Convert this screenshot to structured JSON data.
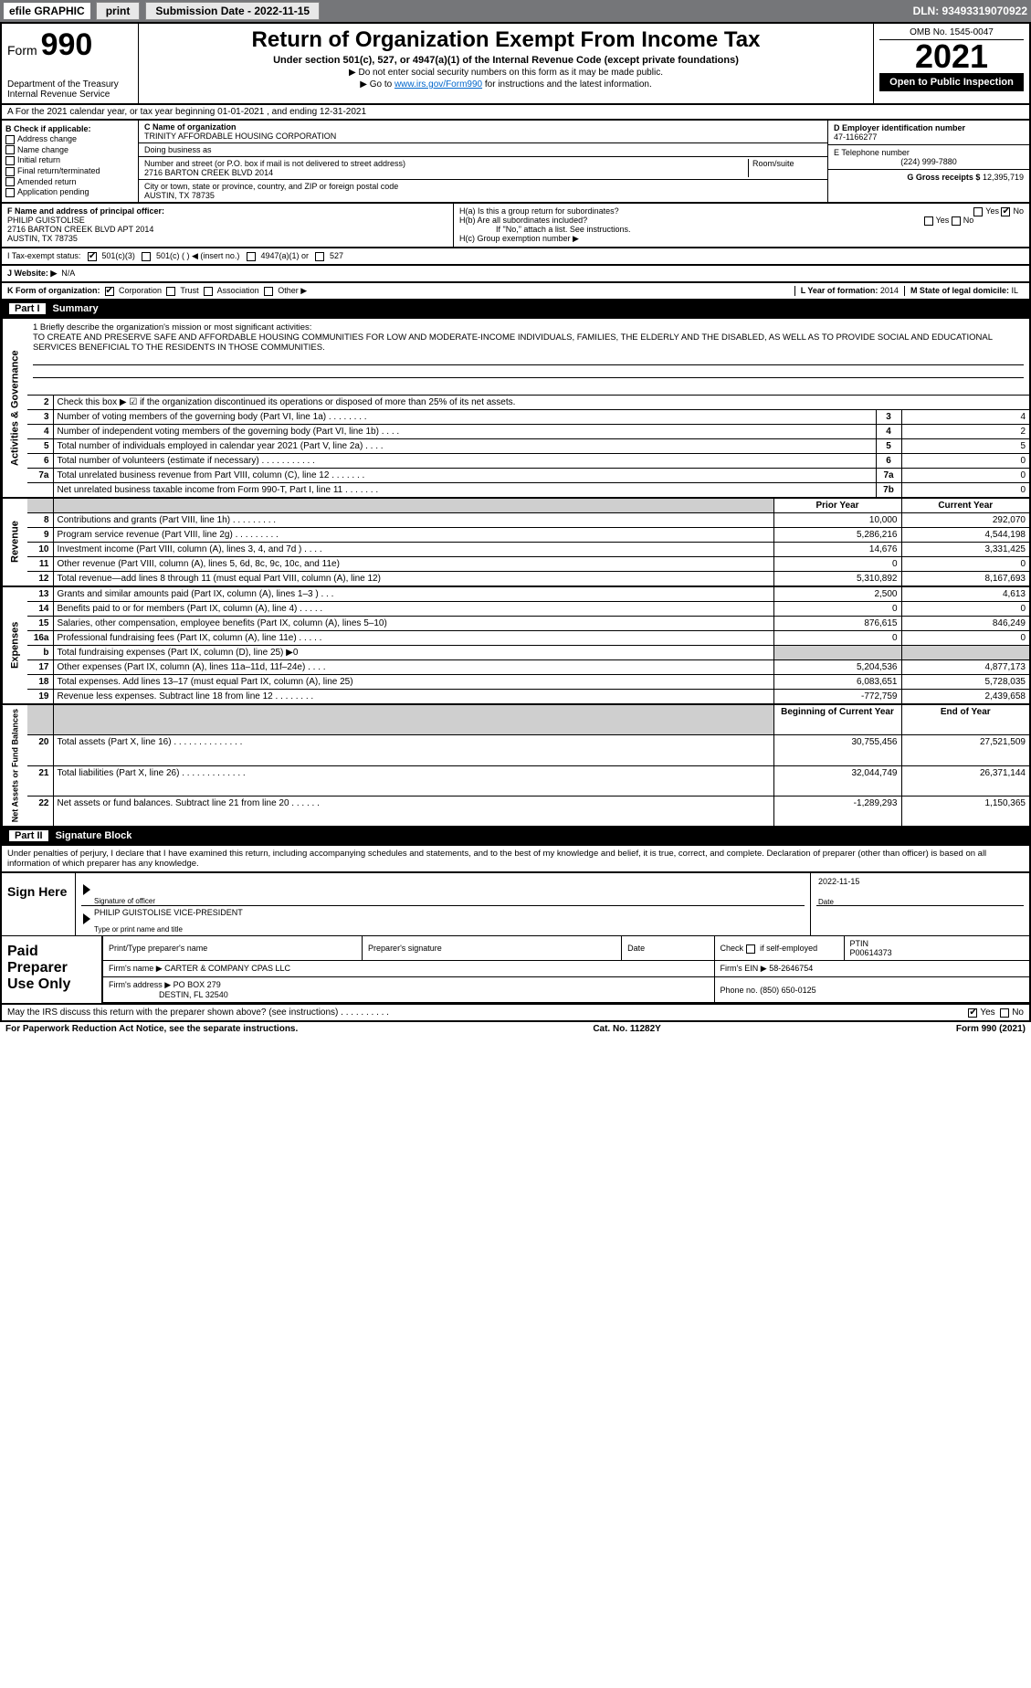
{
  "topbar": {
    "efile": "efile GRAPHIC",
    "print": "print",
    "sub_label": "Submission Date - 2022-11-15",
    "dln": "DLN: 93493319070922"
  },
  "header": {
    "form_label": "Form",
    "form_no": "990",
    "dept": "Department of the Treasury",
    "irs": "Internal Revenue Service",
    "title": "Return of Organization Exempt From Income Tax",
    "sub1": "Under section 501(c), 527, or 4947(a)(1) of the Internal Revenue Code (except private foundations)",
    "sub2": "▶ Do not enter social security numbers on this form as it may be made public.",
    "sub3_pre": "▶ Go to ",
    "sub3_link": "www.irs.gov/Form990",
    "sub3_post": " for instructions and the latest information.",
    "omb": "OMB No. 1545-0047",
    "year": "2021",
    "open": "Open to Public Inspection"
  },
  "rowA": "A For the 2021 calendar year, or tax year beginning 01-01-2021    , and ending 12-31-2021",
  "colB": {
    "label": "B Check if applicable:",
    "items": [
      "Address change",
      "Name change",
      "Initial return",
      "Final return/terminated",
      "Amended return",
      "Application pending"
    ]
  },
  "colC": {
    "name_label": "C Name of organization",
    "name": "TRINITY AFFORDABLE HOUSING CORPORATION",
    "dba_label": "Doing business as",
    "dba": "",
    "addr_label": "Number and street (or P.O. box if mail is not delivered to street address)",
    "room_label": "Room/suite",
    "addr": "2716 BARTON CREEK BLVD 2014",
    "city_label": "City or town, state or province, country, and ZIP or foreign postal code",
    "city": "AUSTIN, TX  78735"
  },
  "colD": {
    "ein_label": "D Employer identification number",
    "ein": "47-1166277",
    "phone_label": "E Telephone number",
    "phone": "(224) 999-7880",
    "gross_label": "G Gross receipts $",
    "gross": "12,395,719"
  },
  "rowF": {
    "label": "F  Name and address of principal officer:",
    "name": "PHILIP GUISTOLISE",
    "addr1": "2716 BARTON CREEK BLVD APT 2014",
    "addr2": "AUSTIN, TX  78735"
  },
  "rowH": {
    "ha": "H(a)  Is this a group return for subordinates?",
    "ha_yes": "Yes",
    "ha_no": "No",
    "hb": "H(b)  Are all subordinates included?",
    "hb_yes": "Yes",
    "hb_no": "No",
    "hb_note": "If \"No,\" attach a list. See instructions.",
    "hc": "H(c)  Group exemption number ▶"
  },
  "rowI": {
    "label": "I    Tax-exempt status:",
    "opt1": "501(c)(3)",
    "opt2": "501(c) (   ) ◀ (insert no.)",
    "opt3": "4947(a)(1) or",
    "opt4": "527"
  },
  "rowJ": {
    "label": "J   Website: ▶",
    "val": "N/A"
  },
  "rowK": {
    "label": "K Form of organization:",
    "opts": [
      "Corporation",
      "Trust",
      "Association",
      "Other ▶"
    ],
    "l_label": "L Year of formation:",
    "l_val": "2014",
    "m_label": "M State of legal domicile:",
    "m_val": "IL"
  },
  "part1": {
    "num": "Part I",
    "title": "Summary"
  },
  "mission": {
    "q": "1 Briefly describe the organization's mission or most significant activities:",
    "text": "TO CREATE AND PRESERVE SAFE AND AFFORDABLE HOUSING COMMUNITIES FOR LOW AND MODERATE-INCOME INDIVIDUALS, FAMILIES, THE ELDERLY AND THE DISABLED, AS WELL AS TO PROVIDE SOCIAL AND EDUCATIONAL SERVICES BENEFICIAL TO THE RESIDENTS IN THOSE COMMUNITIES."
  },
  "gov_rows": [
    {
      "n": "2",
      "t": "Check this box ▶ ☑ if the organization discontinued its operations or disposed of more than 25% of its net assets.",
      "box": "",
      "v": ""
    },
    {
      "n": "3",
      "t": "Number of voting members of the governing body (Part VI, line 1a)  .  .  .  .  .  .  .  .",
      "box": "3",
      "v": "4"
    },
    {
      "n": "4",
      "t": "Number of independent voting members of the governing body (Part VI, line 1b)  .  .  .  .",
      "box": "4",
      "v": "2"
    },
    {
      "n": "5",
      "t": "Total number of individuals employed in calendar year 2021 (Part V, line 2a)  .  .  .  .",
      "box": "5",
      "v": "5"
    },
    {
      "n": "6",
      "t": "Total number of volunteers (estimate if necessary)   .  .  .  .  .  .  .  .  .  .  .",
      "box": "6",
      "v": "0"
    },
    {
      "n": "7a",
      "t": "Total unrelated business revenue from Part VIII, column (C), line 12  .  .  .  .  .  .  .",
      "box": "7a",
      "v": "0"
    },
    {
      "n": "",
      "t": "Net unrelated business taxable income from Form 990-T, Part I, line 11  .  .  .  .  .  .  .",
      "box": "7b",
      "v": "0"
    }
  ],
  "rev_hdr": {
    "prior": "Prior Year",
    "curr": "Current Year"
  },
  "rev_rows": [
    {
      "n": "8",
      "t": "Contributions and grants (Part VIII, line 1h)   .  .  .  .  .  .  .  .  .",
      "p": "10,000",
      "c": "292,070"
    },
    {
      "n": "9",
      "t": "Program service revenue (Part VIII, line 2g)   .  .  .  .  .  .  .  .  .",
      "p": "5,286,216",
      "c": "4,544,198"
    },
    {
      "n": "10",
      "t": "Investment income (Part VIII, column (A), lines 3, 4, and 7d )   .  .  .  .",
      "p": "14,676",
      "c": "3,331,425"
    },
    {
      "n": "11",
      "t": "Other revenue (Part VIII, column (A), lines 5, 6d, 8c, 9c, 10c, and 11e)",
      "p": "0",
      "c": "0"
    },
    {
      "n": "12",
      "t": "Total revenue—add lines 8 through 11 (must equal Part VIII, column (A), line 12)",
      "p": "5,310,892",
      "c": "8,167,693"
    }
  ],
  "exp_rows": [
    {
      "n": "13",
      "t": "Grants and similar amounts paid (Part IX, column (A), lines 1–3 )  .  .  .",
      "p": "2,500",
      "c": "4,613"
    },
    {
      "n": "14",
      "t": "Benefits paid to or for members (Part IX, column (A), line 4)  .  .  .  .  .",
      "p": "0",
      "c": "0"
    },
    {
      "n": "15",
      "t": "Salaries, other compensation, employee benefits (Part IX, column (A), lines 5–10)",
      "p": "876,615",
      "c": "846,249"
    },
    {
      "n": "16a",
      "t": "Professional fundraising fees (Part IX, column (A), line 11e)  .  .  .  .  .",
      "p": "0",
      "c": "0"
    },
    {
      "n": "b",
      "t": "Total fundraising expenses (Part IX, column (D), line 25) ▶0",
      "p": "",
      "c": "",
      "shade": true
    },
    {
      "n": "17",
      "t": "Other expenses (Part IX, column (A), lines 11a–11d, 11f–24e)  .  .  .  .",
      "p": "5,204,536",
      "c": "4,877,173"
    },
    {
      "n": "18",
      "t": "Total expenses. Add lines 13–17 (must equal Part IX, column (A), line 25)",
      "p": "6,083,651",
      "c": "5,728,035"
    },
    {
      "n": "19",
      "t": "Revenue less expenses. Subtract line 18 from line 12 .  .  .  .  .  .  .  .",
      "p": "-772,759",
      "c": "2,439,658"
    }
  ],
  "na_hdr": {
    "prior": "Beginning of Current Year",
    "curr": "End of Year"
  },
  "na_rows": [
    {
      "n": "20",
      "t": "Total assets (Part X, line 16)  .  .  .  .  .  .  .  .  .  .  .  .  .  .",
      "p": "30,755,456",
      "c": "27,521,509"
    },
    {
      "n": "21",
      "t": "Total liabilities (Part X, line 26)  .  .  .  .  .  .  .  .  .  .  .  .  .",
      "p": "32,044,749",
      "c": "26,371,144"
    },
    {
      "n": "22",
      "t": "Net assets or fund balances. Subtract line 21 from line 20  .  .  .  .  .  .",
      "p": "-1,289,293",
      "c": "1,150,365"
    }
  ],
  "sides": {
    "gov": "Activities & Governance",
    "rev": "Revenue",
    "exp": "Expenses",
    "na": "Net Assets or Fund Balances"
  },
  "part2": {
    "num": "Part II",
    "title": "Signature Block"
  },
  "decl": "Under penalties of perjury, I declare that I have examined this return, including accompanying schedules and statements, and to the best of my knowledge and belief, it is true, correct, and complete. Declaration of preparer (other than officer) is based on all information of which preparer has any knowledge.",
  "sign": {
    "here": "Sign Here",
    "sig_label": "Signature of officer",
    "date_label": "Date",
    "date": "2022-11-15",
    "name": "PHILIP GUISTOLISE  VICE-PRESIDENT",
    "name_label": "Type or print name and title"
  },
  "paid": {
    "label": "Paid Preparer Use Only",
    "h1": "Print/Type preparer's name",
    "h2": "Preparer's signature",
    "h3": "Date",
    "h4_a": "Check",
    "h4_b": "if self-employed",
    "h5": "PTIN",
    "ptin": "P00614373",
    "firm_name_l": "Firm's name    ▶",
    "firm_name": "CARTER & COMPANY CPAS LLC",
    "firm_ein_l": "Firm's EIN ▶",
    "firm_ein": "58-2646754",
    "firm_addr_l": "Firm's address ▶",
    "firm_addr1": "PO BOX 279",
    "firm_addr2": "DESTIN, FL  32540",
    "firm_phone_l": "Phone no.",
    "firm_phone": "(850) 650-0125"
  },
  "discuss": {
    "q": "May the IRS discuss this return with the preparer shown above? (see instructions)   .   .   .   .   .   .   .   .   .   .",
    "yes": "Yes",
    "no": "No"
  },
  "footer": {
    "pra": "For Paperwork Reduction Act Notice, see the separate instructions.",
    "cat": "Cat. No. 11282Y",
    "form": "Form 990 (2021)"
  }
}
